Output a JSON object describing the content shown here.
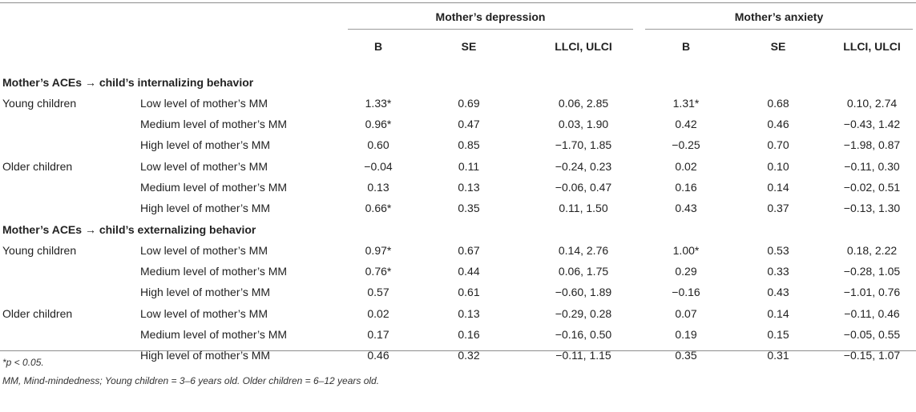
{
  "headers": {
    "group_depression": "Mother’s depression",
    "group_anxiety": "Mother’s anxiety",
    "columns": [
      "B",
      "SE",
      "LLCI, ULCI",
      "B",
      "SE",
      "LLCI, ULCI"
    ]
  },
  "sections": [
    {
      "title": "Mother’s ACEs →  child’s internalizing behavior",
      "rows": [
        {
          "group": "Young children",
          "level": "Low level of mother’s MM",
          "dep_b": "1.33*",
          "dep_se": "0.69",
          "dep_ci": "0.06, 2.85",
          "anx_b": "1.31*",
          "anx_se": "0.68",
          "anx_ci": "0.10, 2.74"
        },
        {
          "group": "",
          "level": "Medium level of mother’s MM",
          "dep_b": "0.96*",
          "dep_se": "0.47",
          "dep_ci": "0.03, 1.90",
          "anx_b": "0.42",
          "anx_se": "0.46",
          "anx_ci": "−0.43, 1.42"
        },
        {
          "group": "",
          "level": "High level of mother’s MM",
          "dep_b": "0.60",
          "dep_se": "0.85",
          "dep_ci": "−1.70, 1.85",
          "anx_b": "−0.25",
          "anx_se": "0.70",
          "anx_ci": "−1.98, 0.87"
        },
        {
          "group": "Older children",
          "level": "Low level of mother’s MM",
          "dep_b": "−0.04",
          "dep_se": "0.11",
          "dep_ci": "−0.24, 0.23",
          "anx_b": "0.02",
          "anx_se": "0.10",
          "anx_ci": "−0.11, 0.30"
        },
        {
          "group": "",
          "level": "Medium level of mother’s MM",
          "dep_b": "0.13",
          "dep_se": "0.13",
          "dep_ci": "−0.06, 0.47",
          "anx_b": "0.16",
          "anx_se": "0.14",
          "anx_ci": "−0.02, 0.51"
        },
        {
          "group": "",
          "level": "High level of mother’s MM",
          "dep_b": "0.66*",
          "dep_se": "0.35",
          "dep_ci": "0.11, 1.50",
          "anx_b": "0.43",
          "anx_se": "0.37",
          "anx_ci": "−0.13, 1.30"
        }
      ]
    },
    {
      "title": "Mother’s ACEs →  child’s externalizing behavior",
      "rows": [
        {
          "group": "Young children",
          "level": "Low level of mother’s MM",
          "dep_b": "0.97*",
          "dep_se": "0.67",
          "dep_ci": "0.14, 2.76",
          "anx_b": "1.00*",
          "anx_se": "0.53",
          "anx_ci": "0.18, 2.22"
        },
        {
          "group": "",
          "level": "Medium level of mother’s MM",
          "dep_b": "0.76*",
          "dep_se": "0.44",
          "dep_ci": "0.06, 1.75",
          "anx_b": "0.29",
          "anx_se": "0.33",
          "anx_ci": "−0.28, 1.05"
        },
        {
          "group": "",
          "level": "High level of mother’s MM",
          "dep_b": "0.57",
          "dep_se": "0.61",
          "dep_ci": "−0.60, 1.89",
          "anx_b": "−0.16",
          "anx_se": "0.43",
          "anx_ci": "−1.01, 0.76"
        },
        {
          "group": "Older children",
          "level": "Low level of mother’s MM",
          "dep_b": "0.02",
          "dep_se": "0.13",
          "dep_ci": "−0.29, 0.28",
          "anx_b": "0.07",
          "anx_se": "0.14",
          "anx_ci": "−0.11, 0.46"
        },
        {
          "group": "",
          "level": "Medium level of mother’s MM",
          "dep_b": "0.17",
          "dep_se": "0.16",
          "dep_ci": "−0.16, 0.50",
          "anx_b": "0.19",
          "anx_se": "0.15",
          "anx_ci": "−0.05, 0.55"
        },
        {
          "group": "",
          "level": "High level of mother’s MM",
          "dep_b": "0.46",
          "dep_se": "0.32",
          "dep_ci": "−0.11, 1.15",
          "anx_b": "0.35",
          "anx_se": "0.31",
          "anx_ci": "−0.15, 1.07"
        }
      ]
    }
  ],
  "notes": {
    "significance": "*p < 0.05.",
    "definitions": "MM, Mind-mindedness; Young children = 3–6 years old. Older children = 6–12 years old."
  }
}
